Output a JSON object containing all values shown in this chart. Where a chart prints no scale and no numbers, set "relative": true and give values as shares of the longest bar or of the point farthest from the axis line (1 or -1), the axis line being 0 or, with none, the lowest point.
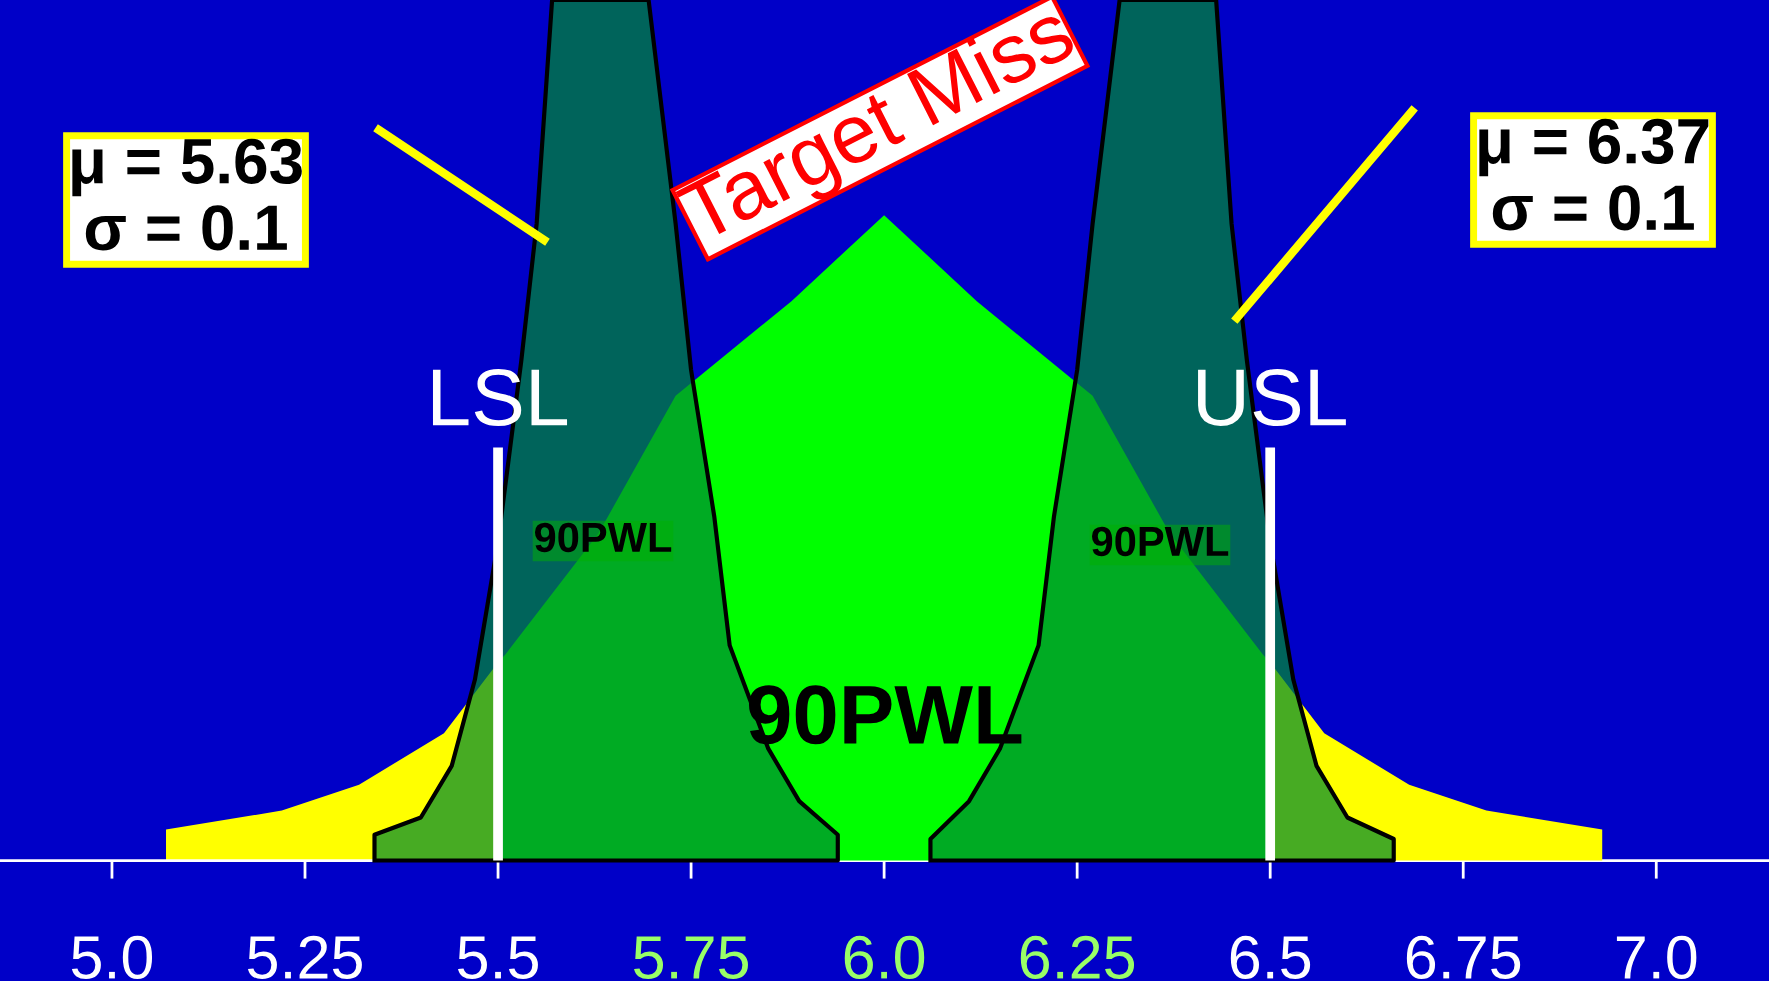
{
  "chart_data": {
    "type": "area",
    "relative": true,
    "xlim": [
      4.855,
      7.146
    ],
    "xticks": [
      {
        "value": 5,
        "label": "5.0"
      },
      5.25,
      5.5,
      5.75,
      {
        "value": 6,
        "label": "6.0"
      },
      6.25,
      6.5,
      6.75,
      {
        "value": 7,
        "label": "7.0"
      }
    ],
    "tick_labels": "x",
    "legend": false,
    "grid": false,
    "series": [
      {
        "color": "#ffff00",
        "line_style": "none",
        "x": [
          5.07,
          5.22,
          5.32,
          5.43,
          5.5
        ],
        "values": [
          0.036,
          0.058,
          0.088,
          0.148,
          0.23
        ]
      },
      {
        "color": "#00ff00",
        "line_style": "none",
        "x": [
          5.5,
          5.51,
          5.63,
          5.73,
          5.88,
          6.0,
          6.12,
          6.27,
          6.37,
          6.49,
          6.5
        ],
        "values": [
          0.23,
          0.24,
          0.38,
          0.54,
          0.65,
          0.75,
          0.65,
          0.54,
          0.38,
          0.24,
          0.23
        ]
      },
      {
        "color": "#ffff00",
        "line_style": "none",
        "x": [
          6.5,
          6.57,
          6.68,
          6.78,
          6.93
        ],
        "values": [
          0.23,
          0.148,
          0.088,
          0.058,
          0.036
        ]
      },
      {
        "color": "#008a30",
        "line_style": "solid",
        "x": [
          5.34,
          5.4,
          5.44,
          5.47,
          5.5,
          5.53,
          5.55,
          5.57,
          5.695,
          5.73,
          5.75,
          5.78,
          5.8,
          5.85,
          5.89,
          5.94
        ],
        "values": [
          0.03,
          0.05,
          0.11,
          0.21,
          0.37,
          0.58,
          0.74,
          1.0,
          1.0,
          0.74,
          0.57,
          0.4,
          0.25,
          0.13,
          0.069,
          0.03
        ]
      },
      {
        "color": "#008a30",
        "line_style": "solid",
        "x": [
          6.06,
          6.11,
          6.15,
          6.2,
          6.22,
          6.25,
          6.27,
          6.305,
          6.43,
          6.45,
          6.47,
          6.5,
          6.53,
          6.56,
          6.6,
          6.66
        ],
        "values": [
          0.025,
          0.069,
          0.13,
          0.25,
          0.4,
          0.57,
          0.74,
          1.0,
          1.0,
          0.74,
          0.58,
          0.37,
          0.21,
          0.11,
          0.05,
          0.025
        ]
      }
    ],
    "ref_lines": [
      {
        "axis": "x",
        "value": 5.5,
        "label": "LSL",
        "color": "#ffffff"
      },
      {
        "axis": "x",
        "value": 6.5,
        "label": "USL",
        "color": "#ffffff"
      }
    ],
    "annotations": [
      "μ = 5.63\nσ = 0.1",
      "μ = 6.37\nσ = 0.1",
      "Target Miss",
      "90PWL",
      "90PWL",
      "90PWL"
    ]
  }
}
